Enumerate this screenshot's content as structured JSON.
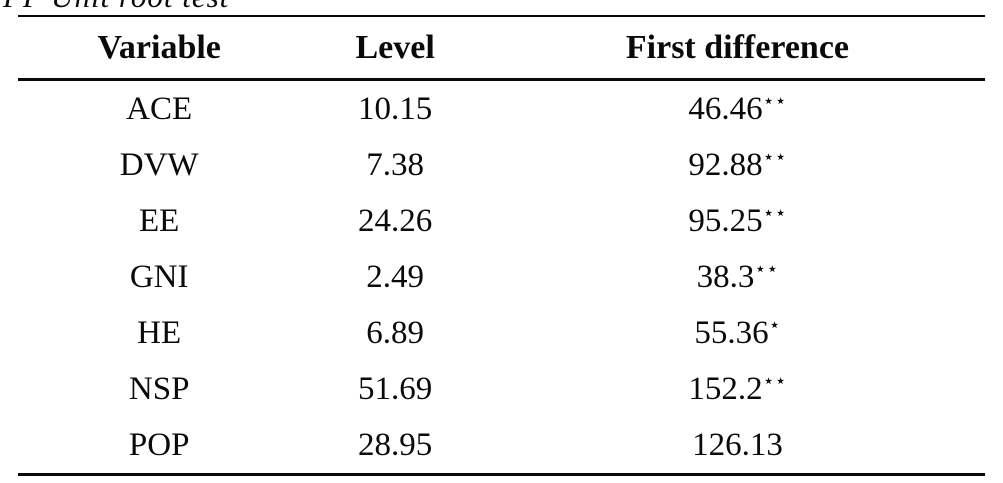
{
  "caption": {
    "text": "PP Unit root test"
  },
  "table": {
    "columns": [
      "Variable",
      "Level",
      "First difference"
    ],
    "rows": [
      {
        "variable": "ACE",
        "level": "10.15",
        "first_difference": "46.46",
        "significance": "⋆⋆"
      },
      {
        "variable": "DVW",
        "level": "7.38",
        "first_difference": "92.88",
        "significance": "⋆⋆"
      },
      {
        "variable": "EE",
        "level": "24.26",
        "first_difference": "95.25",
        "significance": "⋆⋆"
      },
      {
        "variable": "GNI",
        "level": "2.49",
        "first_difference": "38.3",
        "significance": "⋆⋆"
      },
      {
        "variable": "HE",
        "level": "6.89",
        "first_difference": "55.36",
        "significance": "⋆"
      },
      {
        "variable": "NSP",
        "level": "51.69",
        "first_difference": "152.2",
        "significance": "⋆⋆"
      },
      {
        "variable": "POP",
        "level": "28.95",
        "first_difference": "126.13",
        "significance": ""
      }
    ]
  }
}
